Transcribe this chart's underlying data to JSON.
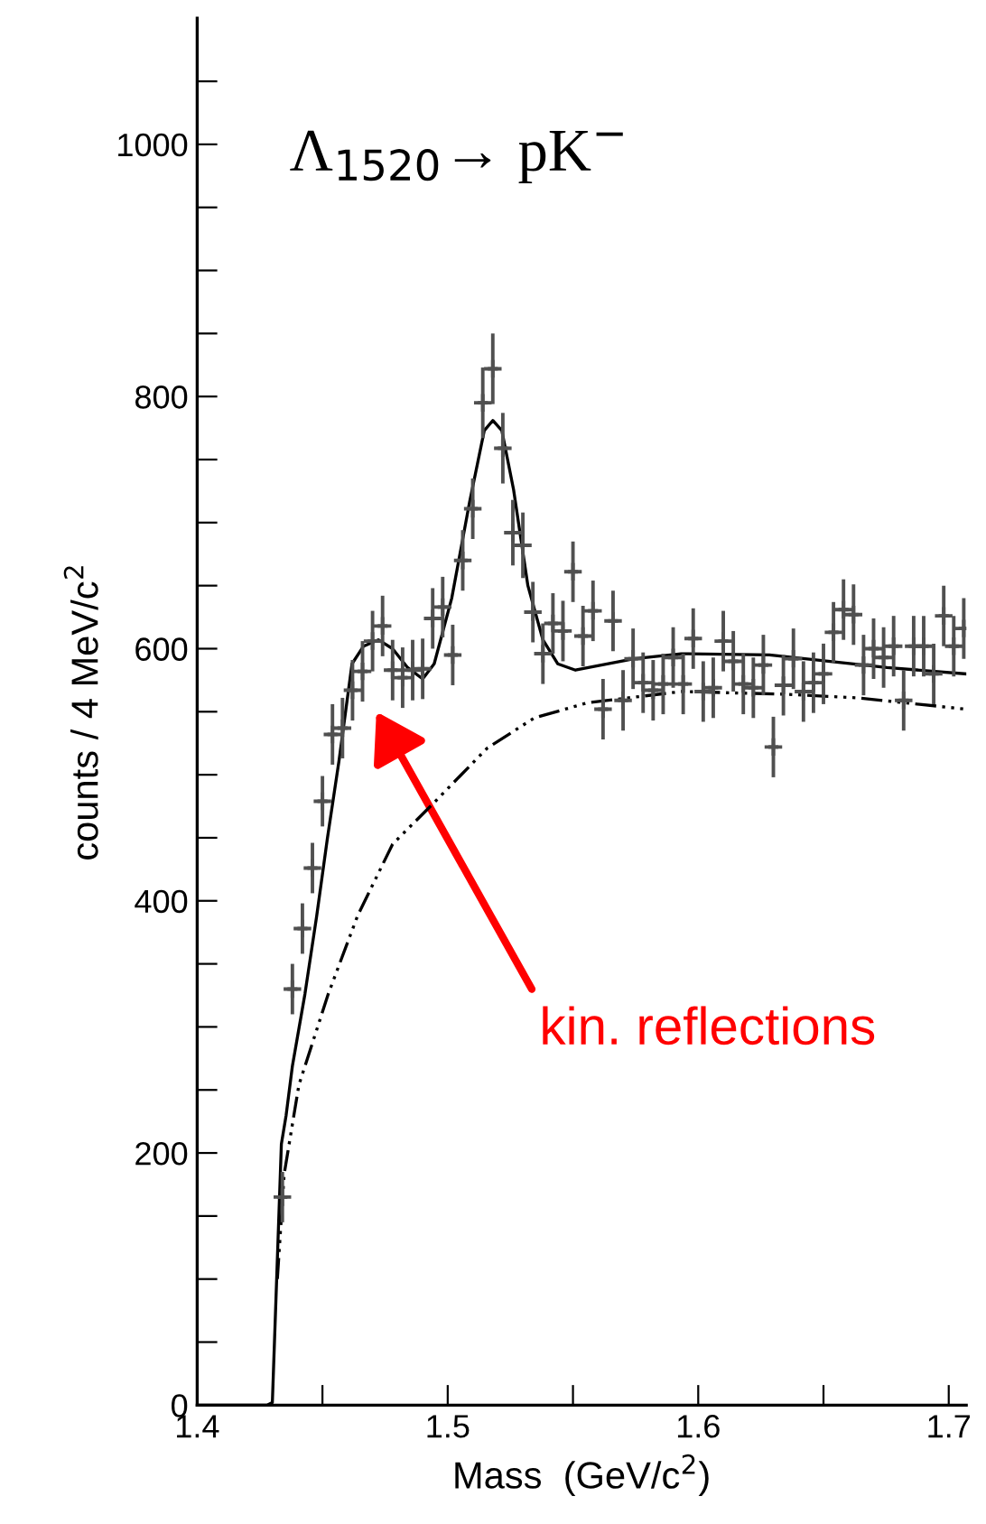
{
  "chart_data": {
    "type": "scatter",
    "title": "Λ$_{1520}$→ pK$^{−}$",
    "xlabel": "Mass  (GeV/c$^{2}$)",
    "ylabel": "counts / 4 MeV/c$^{2}$",
    "xlim": [
      1.4,
      1.707
    ],
    "ylim": [
      0,
      1100
    ],
    "xticks": [
      1.4,
      {
        "value": 1.45,
        "label": null
      },
      1.5,
      {
        "value": 1.55,
        "label": null
      },
      1.6,
      {
        "value": 1.65,
        "label": null
      },
      1.7
    ],
    "yticks": [
      0,
      {
        "value": 50,
        "label": null
      },
      {
        "value": 100,
        "label": null
      },
      {
        "value": 150,
        "label": null
      },
      200,
      {
        "value": 250,
        "label": null
      },
      {
        "value": 300,
        "label": null
      },
      {
        "value": 350,
        "label": null
      },
      400,
      {
        "value": 450,
        "label": null
      },
      {
        "value": 500,
        "label": null
      },
      {
        "value": 550,
        "label": null
      },
      600,
      {
        "value": 650,
        "label": null
      },
      {
        "value": 700,
        "label": null
      },
      {
        "value": 750,
        "label": null
      },
      800,
      {
        "value": 850,
        "label": null
      },
      {
        "value": 900,
        "label": null
      },
      {
        "value": 950,
        "label": null
      },
      1000,
      {
        "value": 1050,
        "label": null
      }
    ],
    "grid": false,
    "annotations": [
      "kin. reflections"
    ],
    "series": [
      {
        "color": "#505050",
        "marker": "cross",
        "x": [
          1.434,
          1.438,
          1.442,
          1.446,
          1.45,
          1.454,
          1.458,
          1.462,
          1.466,
          1.47,
          1.474,
          1.478,
          1.482,
          1.486,
          1.49,
          1.494,
          1.498,
          1.502,
          1.506,
          1.51,
          1.514,
          1.518,
          1.522,
          1.526,
          1.53,
          1.534,
          1.538,
          1.542,
          1.546,
          1.55,
          1.554,
          1.558,
          1.562,
          1.566,
          1.57,
          1.574,
          1.578,
          1.582,
          1.586,
          1.59,
          1.594,
          1.598,
          1.602,
          1.606,
          1.61,
          1.614,
          1.618,
          1.622,
          1.626,
          1.63,
          1.634,
          1.638,
          1.642,
          1.646,
          1.65,
          1.654,
          1.658,
          1.662,
          1.666,
          1.67,
          1.674,
          1.678,
          1.682,
          1.686,
          1.69,
          1.694,
          1.698,
          1.702,
          1.706
        ],
        "values": [
          165,
          330,
          378,
          426,
          479,
          532,
          537,
          567,
          582,
          606,
          618,
          583,
          577,
          583,
          584,
          624,
          633,
          595,
          670,
          711,
          795,
          822,
          759,
          692,
          682,
          629,
          596,
          620,
          614,
          661,
          610,
          630,
          552,
          622,
          559,
          592,
          573,
          567,
          572,
          593,
          572,
          608,
          566,
          569,
          606,
          590,
          572,
          569,
          587,
          522,
          571,
          592,
          566,
          573,
          580,
          613,
          631,
          627,
          587,
          600,
          593,
          602,
          559,
          602,
          602,
          580,
          626,
          602,
          616
        ],
        "errors": [
          20,
          20,
          20,
          20,
          20,
          24,
          24,
          24,
          24,
          24,
          24,
          24,
          24,
          24,
          24,
          24,
          24,
          24,
          24,
          24,
          28,
          28,
          28,
          26,
          26,
          24,
          24,
          24,
          24,
          24,
          24,
          24,
          24,
          24,
          24,
          24,
          24,
          24,
          24,
          24,
          24,
          24,
          24,
          24,
          24,
          24,
          24,
          24,
          24,
          24,
          24,
          24,
          24,
          24,
          24,
          24,
          24,
          24,
          24,
          24,
          24,
          24,
          24,
          24,
          24,
          24,
          24,
          24,
          24
        ],
        "xerrors": [
          0.002,
          0.002,
          0.002,
          0.002,
          0.002,
          0.002,
          0.002,
          0.002,
          0.002,
          0.002,
          0.002,
          0.002,
          0.002,
          0.002,
          0.002,
          0.002,
          0.002,
          0.002,
          0.002,
          0.002,
          0.002,
          0.002,
          0.002,
          0.002,
          0.002,
          0.002,
          0.002,
          0.002,
          0.002,
          0.002,
          0.002,
          0.002,
          0.002,
          0.002,
          0.002,
          0.002,
          0.002,
          0.002,
          0.002,
          0.002,
          0.002,
          0.002,
          0.002,
          0.002,
          0.002,
          0.002,
          0.002,
          0.002,
          0.002,
          0.002,
          0.002,
          0.002,
          0.002,
          0.002,
          0.002,
          0.002,
          0.002,
          0.002,
          0.002,
          0.002,
          0.002,
          0.002,
          0.002,
          0.002,
          0.002,
          0.002,
          0.002,
          0.002,
          0.002
        ]
      },
      {
        "type": "line",
        "color": "#000000",
        "line_style": "solid",
        "x": [
          1.4,
          1.428,
          1.43,
          1.4336,
          1.4355,
          1.438,
          1.443,
          1.4477,
          1.452,
          1.4566,
          1.4618,
          1.4664,
          1.4723,
          1.478,
          1.484,
          1.49,
          1.4946,
          1.5016,
          1.5087,
          1.5146,
          1.518,
          1.5216,
          1.5263,
          1.532,
          1.538,
          1.5439,
          1.551,
          1.5744,
          1.5932,
          1.6284,
          1.6519,
          1.6754,
          1.707
        ],
        "values": [
          0,
          0,
          2,
          207,
          230,
          269,
          326,
          388,
          450,
          511,
          588,
          602,
          607,
          600,
          585,
          576,
          588,
          640,
          716,
          773,
          781,
          773,
          726,
          650,
          607,
          588,
          583,
          592,
          596,
          595,
          590,
          585,
          580
        ]
      },
      {
        "type": "line",
        "color": "#000000",
        "line_style": "dashdot",
        "x": [
          1.432,
          1.4347,
          1.4406,
          1.4523,
          1.464,
          1.478,
          1.4946,
          1.5157,
          1.5345,
          1.5556,
          1.5932,
          1.633,
          1.6636,
          1.707
        ],
        "values": [
          100,
          183,
          254,
          326,
          388,
          445,
          478,
          521,
          545,
          557,
          566,
          564,
          561,
          552
        ]
      }
    ]
  }
}
